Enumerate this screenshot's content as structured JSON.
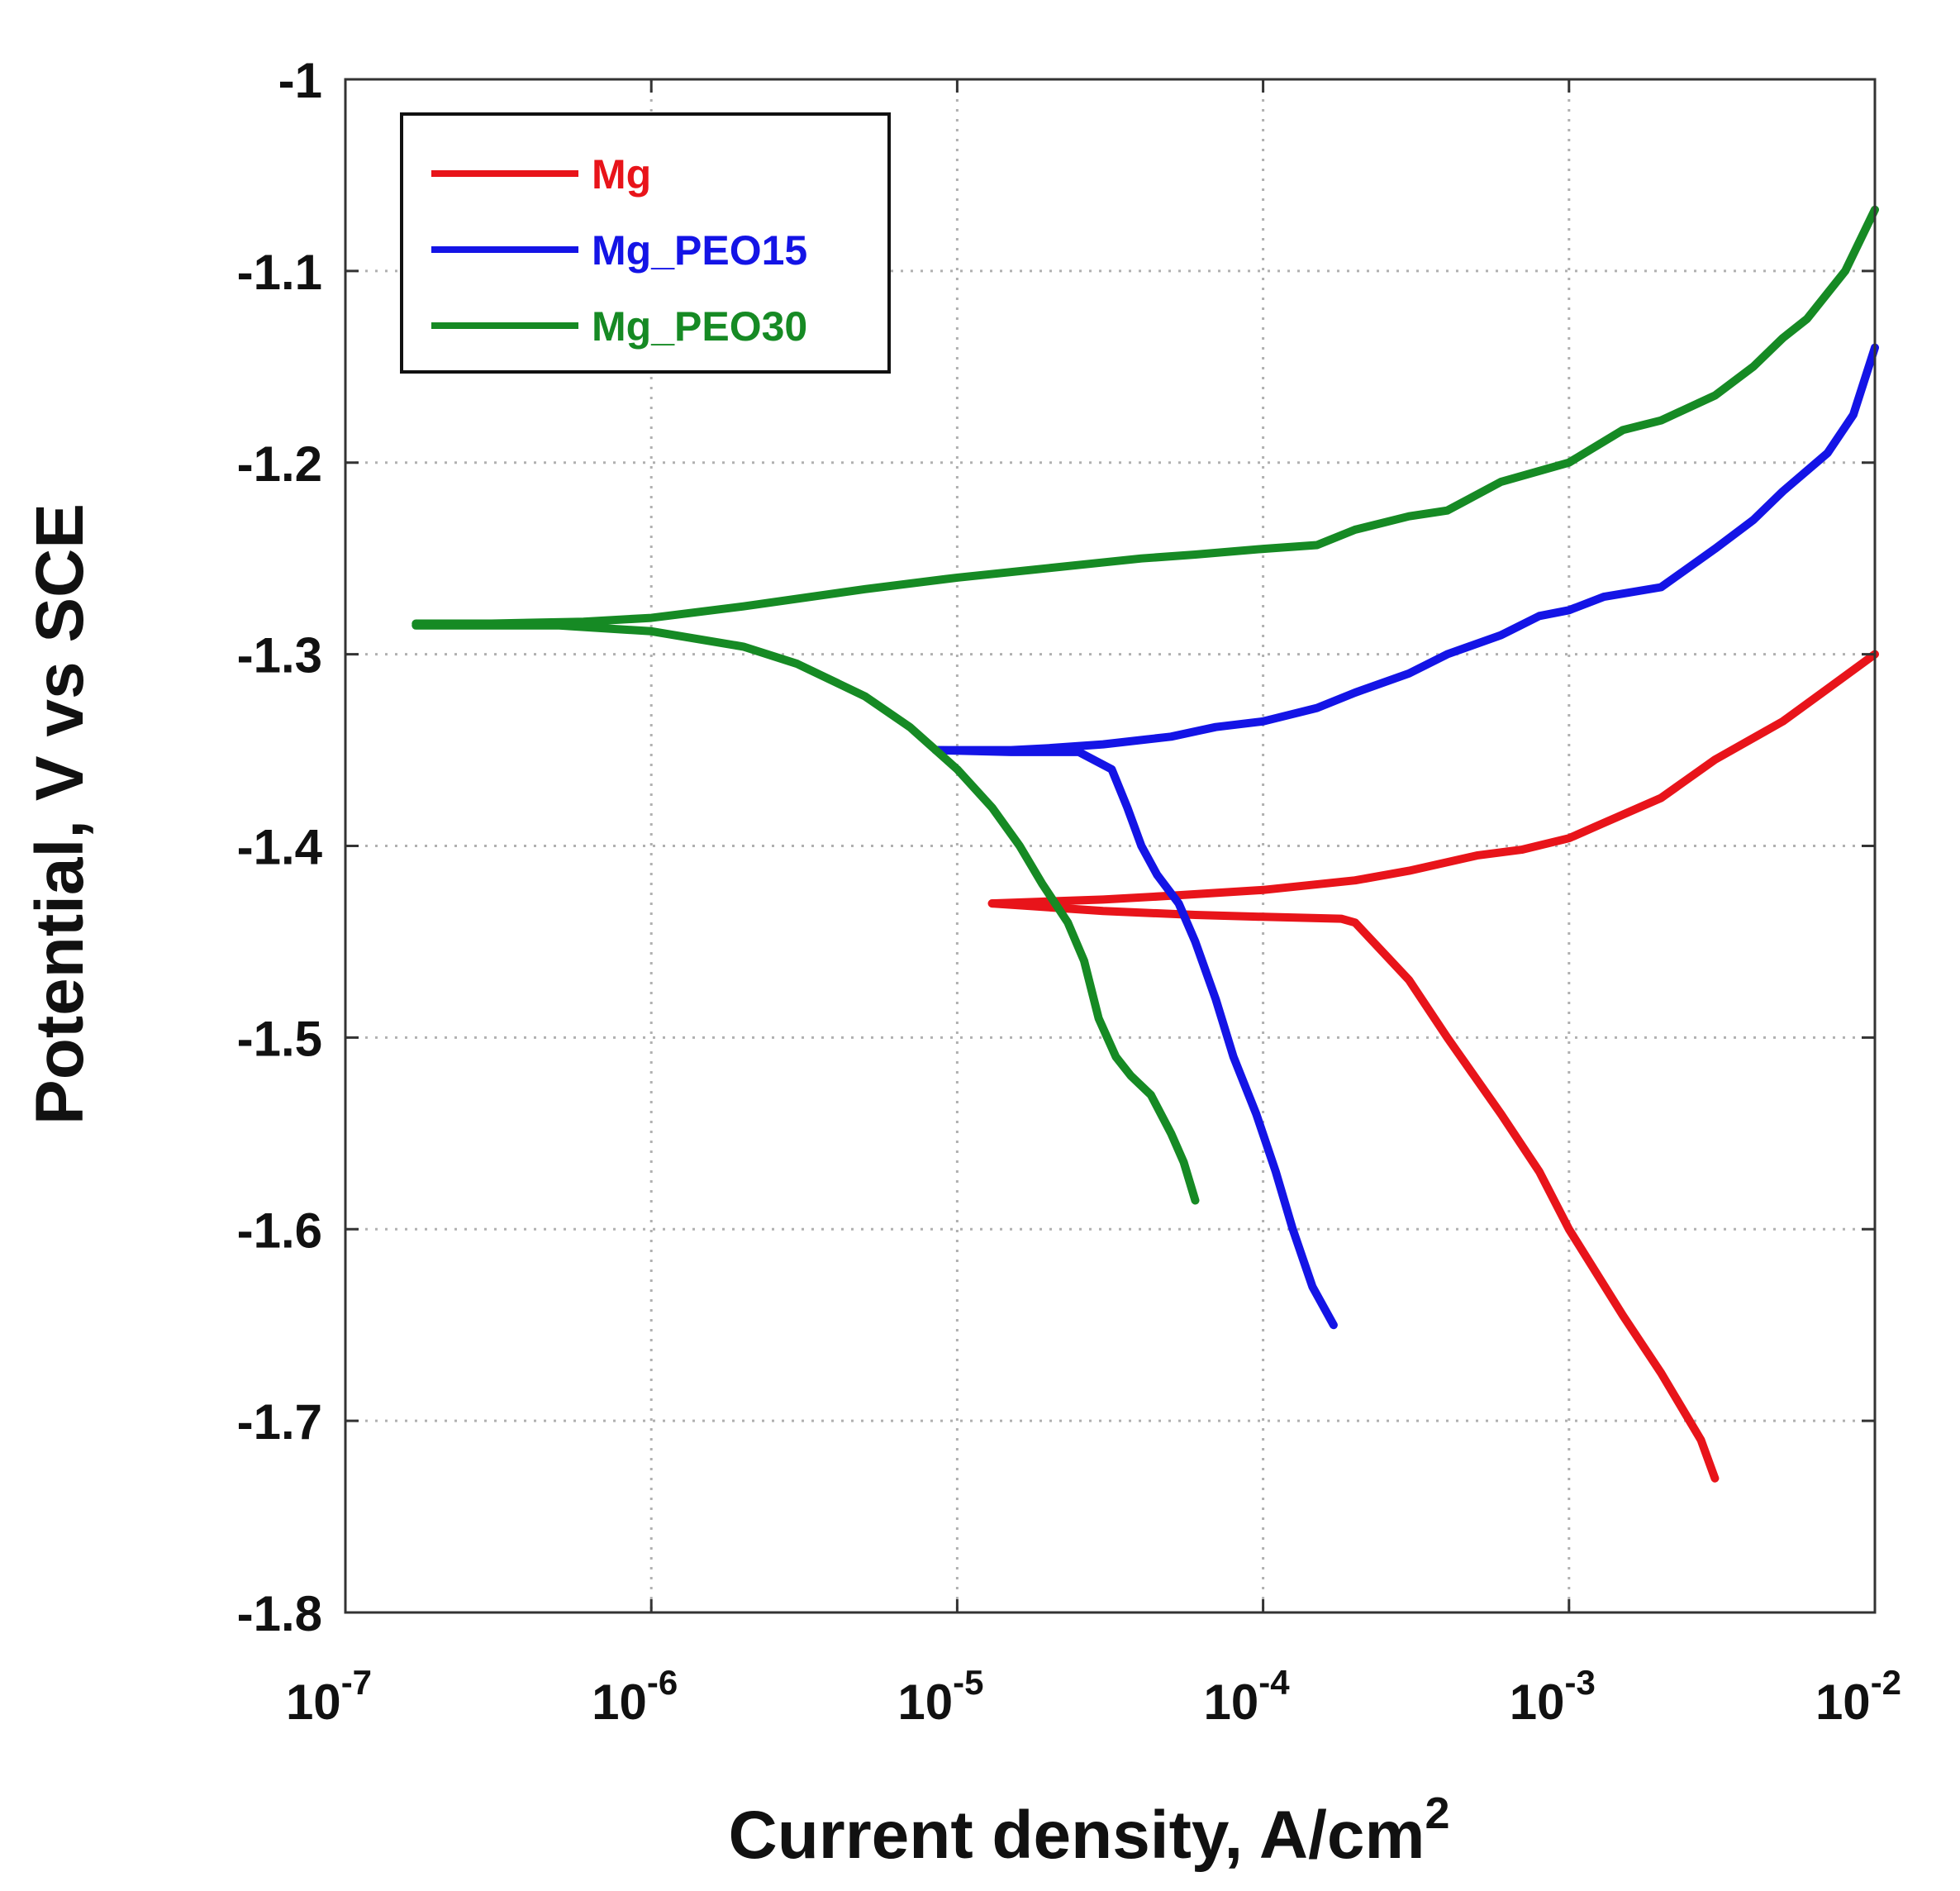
{
  "chart_data": {
    "type": "line",
    "title": "",
    "xlabel": "Current density, A/cm",
    "xlabel_sup": "2",
    "ylabel": "Potential, V vs SCE",
    "x_scale": "log",
    "xlim": [
      1e-07,
      0.01
    ],
    "ylim": [
      -1.8,
      -1
    ],
    "grid": true,
    "legend_position": "top-left",
    "x_ticks": [
      {
        "value": 1e-07,
        "base": "10",
        "exp": "-7"
      },
      {
        "value": 1e-06,
        "base": "10",
        "exp": "-6"
      },
      {
        "value": 1e-05,
        "base": "10",
        "exp": "-5"
      },
      {
        "value": 0.0001,
        "base": "10",
        "exp": "-4"
      },
      {
        "value": 0.001,
        "base": "10",
        "exp": "-3"
      },
      {
        "value": 0.01,
        "base": "10",
        "exp": "-2"
      }
    ],
    "y_ticks": [
      {
        "value": -1.0,
        "label": "-1"
      },
      {
        "value": -1.1,
        "label": "-1.1"
      },
      {
        "value": -1.2,
        "label": "-1.2"
      },
      {
        "value": -1.3,
        "label": "-1.3"
      },
      {
        "value": -1.4,
        "label": "-1.4"
      },
      {
        "value": -1.5,
        "label": "-1.5"
      },
      {
        "value": -1.6,
        "label": "-1.6"
      },
      {
        "value": -1.7,
        "label": "-1.7"
      },
      {
        "value": -1.8,
        "label": "-1.8"
      }
    ],
    "series": [
      {
        "name": "Mg",
        "color": "#e8141a",
        "branches": [
          [
            [
              1.3e-05,
              -1.43
            ],
            [
              3e-05,
              -1.428
            ],
            [
              5e-05,
              -1.426
            ],
            [
              0.0001,
              -1.423
            ],
            [
              0.0002,
              -1.418
            ],
            [
              0.0003,
              -1.413
            ],
            [
              0.0005,
              -1.405
            ],
            [
              0.0007,
              -1.402
            ],
            [
              0.001,
              -1.396
            ],
            [
              0.0013,
              -1.388
            ],
            [
              0.002,
              -1.375
            ],
            [
              0.003,
              -1.355
            ],
            [
              0.005,
              -1.335
            ],
            [
              0.007,
              -1.318
            ],
            [
              0.01,
              -1.3
            ]
          ],
          [
            [
              1.3e-05,
              -1.43
            ],
            [
              3e-05,
              -1.434
            ],
            [
              6e-05,
              -1.436
            ],
            [
              0.0001,
              -1.437
            ],
            [
              0.00018,
              -1.438
            ],
            [
              0.0002,
              -1.44
            ],
            [
              0.0003,
              -1.47
            ],
            [
              0.0004,
              -1.5
            ],
            [
              0.0006,
              -1.54
            ],
            [
              0.0008,
              -1.57
            ],
            [
              0.001,
              -1.6
            ],
            [
              0.0015,
              -1.645
            ],
            [
              0.002,
              -1.675
            ],
            [
              0.0027,
              -1.71
            ],
            [
              0.003,
              -1.73
            ]
          ]
        ]
      },
      {
        "name": "Mg_PEO15",
        "color": "#1414e6",
        "branches": [
          [
            [
              8.5e-06,
              -1.35
            ],
            [
              1.5e-05,
              -1.35
            ],
            [
              2e-05,
              -1.349
            ],
            [
              3e-05,
              -1.347
            ],
            [
              5e-05,
              -1.343
            ],
            [
              7e-05,
              -1.338
            ],
            [
              0.0001,
              -1.335
            ],
            [
              0.00015,
              -1.328
            ],
            [
              0.0002,
              -1.32
            ],
            [
              0.0003,
              -1.31
            ],
            [
              0.0004,
              -1.3
            ],
            [
              0.0006,
              -1.29
            ],
            [
              0.0008,
              -1.28
            ],
            [
              0.001,
              -1.277
            ],
            [
              0.0013,
              -1.27
            ],
            [
              0.002,
              -1.265
            ],
            [
              0.003,
              -1.245
            ],
            [
              0.004,
              -1.23
            ],
            [
              0.005,
              -1.215
            ],
            [
              0.007,
              -1.195
            ],
            [
              0.0085,
              -1.175
            ],
            [
              0.01,
              -1.14
            ]
          ],
          [
            [
              8.5e-06,
              -1.35
            ],
            [
              1.5e-05,
              -1.351
            ],
            [
              2.5e-05,
              -1.351
            ],
            [
              3.2e-05,
              -1.36
            ],
            [
              3.6e-05,
              -1.38
            ],
            [
              4e-05,
              -1.4
            ],
            [
              4.5e-05,
              -1.415
            ],
            [
              5.3e-05,
              -1.43
            ],
            [
              6e-05,
              -1.45
            ],
            [
              7e-05,
              -1.48
            ],
            [
              8e-05,
              -1.51
            ],
            [
              9.5e-05,
              -1.54
            ],
            [
              0.00011,
              -1.57
            ],
            [
              0.000125,
              -1.6
            ],
            [
              0.000145,
              -1.63
            ],
            [
              0.00017,
              -1.65
            ]
          ]
        ]
      },
      {
        "name": "Mg_PEO30",
        "color": "#168a24",
        "branches": [
          [
            [
              1.7e-07,
              -1.284
            ],
            [
              3e-07,
              -1.284
            ],
            [
              6e-07,
              -1.283
            ],
            [
              1e-06,
              -1.281
            ],
            [
              2e-06,
              -1.275
            ],
            [
              5e-06,
              -1.266
            ],
            [
              1e-05,
              -1.26
            ],
            [
              2e-05,
              -1.255
            ],
            [
              4e-05,
              -1.25
            ],
            [
              6e-05,
              -1.248
            ],
            [
              0.0001,
              -1.245
            ],
            [
              0.00015,
              -1.243
            ],
            [
              0.0002,
              -1.235
            ],
            [
              0.0003,
              -1.228
            ],
            [
              0.0004,
              -1.225
            ],
            [
              0.0006,
              -1.21
            ],
            [
              0.001,
              -1.2
            ],
            [
              0.0015,
              -1.183
            ],
            [
              0.002,
              -1.178
            ],
            [
              0.003,
              -1.165
            ],
            [
              0.004,
              -1.15
            ],
            [
              0.005,
              -1.135
            ],
            [
              0.006,
              -1.125
            ],
            [
              0.008,
              -1.1
            ],
            [
              0.01,
              -1.068
            ]
          ],
          [
            [
              1.7e-07,
              -1.285
            ],
            [
              5e-07,
              -1.285
            ],
            [
              1e-06,
              -1.288
            ],
            [
              2e-06,
              -1.296
            ],
            [
              3e-06,
              -1.305
            ],
            [
              5e-06,
              -1.322
            ],
            [
              7e-06,
              -1.338
            ],
            [
              1e-05,
              -1.36
            ],
            [
              1.3e-05,
              -1.38
            ],
            [
              1.6e-05,
              -1.4
            ],
            [
              1.9e-05,
              -1.42
            ],
            [
              2.3e-05,
              -1.44
            ],
            [
              2.6e-05,
              -1.46
            ],
            [
              2.9e-05,
              -1.49
            ],
            [
              3.3e-05,
              -1.51
            ],
            [
              3.7e-05,
              -1.52
            ],
            [
              4.3e-05,
              -1.53
            ],
            [
              5e-05,
              -1.55
            ],
            [
              5.5e-05,
              -1.565
            ],
            [
              6e-05,
              -1.585
            ]
          ]
        ]
      }
    ]
  }
}
